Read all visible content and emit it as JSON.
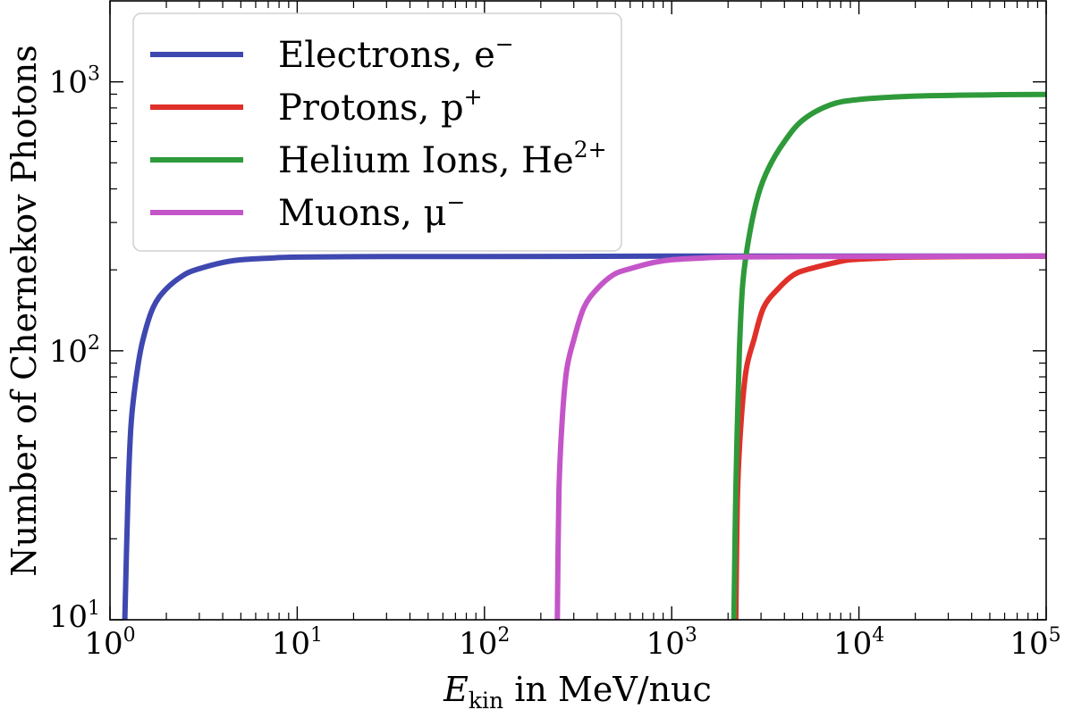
{
  "chart_data": {
    "type": "line",
    "title": "",
    "xlabel": {
      "symbol": "E",
      "subscript": "kin",
      "rest": " in MeV/nuc"
    },
    "ylabel": "Number of Chernekov Photons",
    "xscale": "log",
    "yscale": "log",
    "xlim": [
      1,
      100000
    ],
    "ylim": [
      10,
      2000
    ],
    "grid": false,
    "legend_position": "top-left",
    "x_ticks": [
      {
        "value": 1,
        "base": "10",
        "exp": "0"
      },
      {
        "value": 10,
        "base": "10",
        "exp": "1"
      },
      {
        "value": 100,
        "base": "10",
        "exp": "2"
      },
      {
        "value": 1000,
        "base": "10",
        "exp": "3"
      },
      {
        "value": 10000,
        "base": "10",
        "exp": "4"
      },
      {
        "value": 100000,
        "base": "10",
        "exp": "5"
      }
    ],
    "y_ticks": [
      {
        "value": 10,
        "base": "10",
        "exp": "1"
      },
      {
        "value": 100,
        "base": "10",
        "exp": "2"
      },
      {
        "value": 1000,
        "base": "10",
        "exp": "3"
      }
    ],
    "series": [
      {
        "name": "Electrons, e",
        "name_sup": "−",
        "color": "#3f48b0",
        "points": [
          [
            1.2,
            10
          ],
          [
            1.25,
            30
          ],
          [
            1.3,
            55
          ],
          [
            1.4,
            85
          ],
          [
            1.5,
            110
          ],
          [
            1.7,
            145
          ],
          [
            2,
            170
          ],
          [
            2.5,
            192
          ],
          [
            3,
            202
          ],
          [
            4,
            213
          ],
          [
            5,
            218
          ],
          [
            7,
            221
          ],
          [
            10,
            223
          ],
          [
            30,
            224
          ],
          [
            100,
            224
          ],
          [
            1000,
            225
          ],
          [
            100000,
            225
          ]
        ]
      },
      {
        "name": "Protons, p",
        "name_sup": "+",
        "color": "#e0302a",
        "points": [
          [
            2200,
            10
          ],
          [
            2250,
            30
          ],
          [
            2350,
            55
          ],
          [
            2500,
            85
          ],
          [
            2750,
            110
          ],
          [
            3100,
            145
          ],
          [
            3700,
            170
          ],
          [
            4500,
            192
          ],
          [
            5500,
            202
          ],
          [
            7500,
            213
          ],
          [
            9000,
            218
          ],
          [
            13000,
            221
          ],
          [
            18000,
            223
          ],
          [
            40000,
            224
          ],
          [
            100000,
            225
          ]
        ]
      },
      {
        "name": "Helium Ions, He",
        "name_sup": "2+",
        "color": "#2e9a3a",
        "points": [
          [
            2150,
            10
          ],
          [
            2200,
            30
          ],
          [
            2300,
            100
          ],
          [
            2400,
            180
          ],
          [
            2600,
            270
          ],
          [
            2900,
            380
          ],
          [
            3300,
            480
          ],
          [
            4000,
            600
          ],
          [
            5000,
            720
          ],
          [
            7000,
            820
          ],
          [
            10000,
            860
          ],
          [
            20000,
            885
          ],
          [
            50000,
            895
          ],
          [
            100000,
            898
          ]
        ]
      },
      {
        "name": "Muons, μ",
        "name_sup": "−",
        "color": "#c455c8",
        "points": [
          [
            245,
            10
          ],
          [
            250,
            30
          ],
          [
            260,
            55
          ],
          [
            275,
            85
          ],
          [
            300,
            110
          ],
          [
            340,
            145
          ],
          [
            400,
            170
          ],
          [
            490,
            192
          ],
          [
            600,
            202
          ],
          [
            800,
            213
          ],
          [
            1000,
            218
          ],
          [
            1400,
            221
          ],
          [
            2000,
            223
          ],
          [
            5000,
            224
          ],
          [
            100000,
            225
          ]
        ]
      }
    ]
  }
}
